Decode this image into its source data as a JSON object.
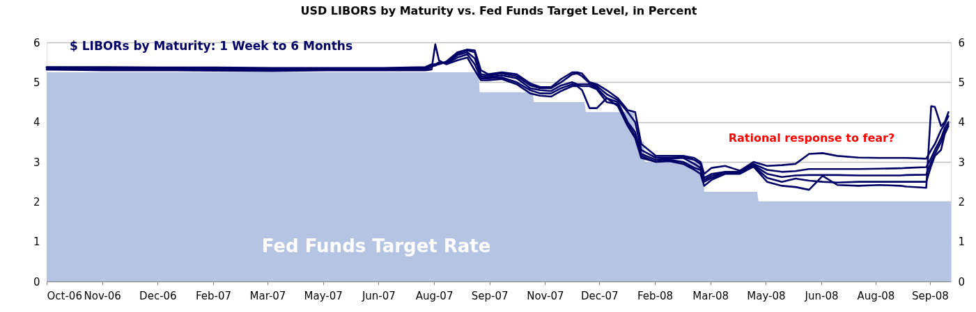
{
  "chart_data": {
    "type": "line",
    "title": "USD LIBORS by Maturity vs. Fed Funds Target Level, in Percent",
    "annotations": [
      "$ LIBORs by Maturity: 1 Week to 6 Months",
      "Rational response to fear?"
    ],
    "x": [
      "2006-10-02",
      "2006-11-18",
      "2007-01-02",
      "2007-02-16",
      "2007-04-03",
      "2007-05-18",
      "2007-07-02",
      "2007-08-05",
      "2007-08-10",
      "2007-08-13",
      "2007-08-16",
      "2007-08-22",
      "2007-08-31",
      "2007-09-08",
      "2007-09-14",
      "2007-09-19",
      "2007-09-25",
      "2007-10-06",
      "2007-10-18",
      "2007-10-29",
      "2007-11-06",
      "2007-11-15",
      "2007-11-23",
      "2007-12-02",
      "2007-12-06",
      "2007-12-10",
      "2007-12-16",
      "2007-12-22",
      "2007-12-30",
      "2008-01-08",
      "2008-01-16",
      "2008-01-22",
      "2008-01-27",
      "2008-02-08",
      "2008-02-19",
      "2008-03-01",
      "2008-03-10",
      "2008-03-15",
      "2008-03-18",
      "2008-03-24",
      "2008-04-04",
      "2008-04-16",
      "2008-04-27",
      "2008-05-08",
      "2008-05-20",
      "2008-05-31",
      "2008-06-11",
      "2008-06-22",
      "2008-07-04",
      "2008-07-21",
      "2008-08-07",
      "2008-08-24",
      "2008-08-29",
      "2008-09-14",
      "2008-09-18",
      "2008-09-21",
      "2008-09-26",
      "2008-09-29",
      "2008-10-02"
    ],
    "series": [
      {
        "name": "Fed Funds Target Rate",
        "type": "area",
        "axis": "y2",
        "color": "#b4c4e2",
        "x": [
          "2006-10-02",
          "2007-09-17",
          "2007-09-18",
          "2007-10-31",
          "2007-11-01",
          "2007-12-12",
          "2007-12-13",
          "2008-01-21",
          "2008-01-22",
          "2008-01-29",
          "2008-01-30",
          "2008-03-17",
          "2008-03-18",
          "2008-04-30",
          "2008-05-01",
          "2008-10-04"
        ],
        "values": [
          5.25,
          5.25,
          4.75,
          4.75,
          4.5,
          4.5,
          4.25,
          4.25,
          3.5,
          3.5,
          3.0,
          3.0,
          2.25,
          2.25,
          2.0,
          2.0
        ]
      },
      {
        "color": "#000066",
        "values": [
          5.32,
          5.3,
          5.3,
          5.29,
          5.28,
          5.3,
          5.3,
          5.3,
          5.32,
          5.95,
          5.55,
          5.45,
          5.55,
          5.62,
          5.3,
          5.05,
          5.05,
          5.08,
          4.95,
          4.72,
          4.66,
          4.64,
          4.78,
          4.9,
          4.9,
          4.8,
          4.35,
          4.35,
          4.6,
          4.4,
          3.9,
          3.6,
          3.1,
          3.0,
          3.02,
          2.95,
          2.8,
          2.7,
          2.4,
          2.55,
          2.7,
          2.7,
          2.88,
          2.5,
          2.4,
          2.37,
          2.3,
          2.65,
          2.42,
          2.4,
          2.42,
          2.4,
          2.38,
          2.35,
          4.4,
          4.38,
          3.9,
          4.0,
          4.25
        ]
      },
      {
        "color": "#000066",
        "values": [
          5.32,
          5.32,
          5.32,
          5.31,
          5.31,
          5.32,
          5.31,
          5.32,
          5.38,
          5.45,
          5.5,
          5.47,
          5.62,
          5.7,
          5.45,
          5.1,
          5.1,
          5.12,
          5.0,
          4.8,
          4.72,
          4.72,
          4.85,
          4.95,
          4.92,
          4.9,
          4.9,
          4.82,
          4.5,
          4.45,
          3.95,
          3.65,
          3.15,
          3.0,
          3.05,
          3.0,
          2.85,
          2.8,
          2.5,
          2.6,
          2.72,
          2.72,
          2.9,
          2.6,
          2.5,
          2.58,
          2.53,
          2.5,
          2.48,
          2.5,
          2.5,
          2.5,
          2.5,
          2.5,
          2.9,
          3.15,
          3.3,
          3.7,
          3.9
        ]
      },
      {
        "color": "#000066",
        "values": [
          5.36,
          5.35,
          5.35,
          5.33,
          5.32,
          5.33,
          5.33,
          5.34,
          5.4,
          5.42,
          5.48,
          5.48,
          5.68,
          5.75,
          5.6,
          5.15,
          5.13,
          5.17,
          5.1,
          4.85,
          4.8,
          4.78,
          4.92,
          5.0,
          4.95,
          4.95,
          4.95,
          4.85,
          4.6,
          4.5,
          4.0,
          3.75,
          3.2,
          3.05,
          3.08,
          3.1,
          2.95,
          2.85,
          2.55,
          2.65,
          2.73,
          2.73,
          2.92,
          2.7,
          2.62,
          2.66,
          2.67,
          2.67,
          2.67,
          2.66,
          2.66,
          2.66,
          2.67,
          2.68,
          3.0,
          3.2,
          3.5,
          3.75,
          3.95
        ]
      },
      {
        "color": "#000066",
        "values": [
          5.37,
          5.36,
          5.36,
          5.35,
          5.35,
          5.35,
          5.35,
          5.36,
          5.42,
          5.42,
          5.46,
          5.5,
          5.72,
          5.8,
          5.75,
          5.2,
          5.17,
          5.22,
          5.15,
          4.92,
          4.85,
          4.85,
          5.0,
          5.2,
          5.22,
          5.15,
          4.98,
          4.9,
          4.7,
          4.55,
          4.25,
          4.0,
          3.3,
          3.1,
          3.1,
          3.12,
          3.05,
          2.95,
          2.6,
          2.7,
          2.75,
          2.75,
          2.95,
          2.8,
          2.75,
          2.77,
          2.82,
          2.82,
          2.82,
          2.82,
          2.83,
          2.84,
          2.85,
          2.87,
          3.1,
          3.3,
          3.6,
          3.85,
          4.0
        ]
      },
      {
        "color": "#000066",
        "values": [
          5.38,
          5.38,
          5.37,
          5.37,
          5.36,
          5.36,
          5.36,
          5.38,
          5.45,
          5.45,
          5.45,
          5.52,
          5.75,
          5.82,
          5.8,
          5.3,
          5.2,
          5.25,
          5.2,
          4.97,
          4.88,
          4.88,
          5.08,
          5.25,
          5.25,
          5.22,
          5.0,
          4.95,
          4.8,
          4.6,
          4.3,
          4.25,
          3.45,
          3.15,
          3.15,
          3.15,
          3.1,
          3.0,
          2.7,
          2.85,
          2.9,
          2.78,
          3.0,
          2.9,
          2.92,
          2.95,
          3.2,
          3.22,
          3.15,
          3.11,
          3.1,
          3.1,
          3.1,
          3.08,
          3.3,
          3.45,
          3.8,
          3.95,
          4.15
        ]
      }
    ],
    "xlim": [
      "2006-10-02",
      "2008-10-04"
    ],
    "xticks": [
      {
        "value": "2006-10-02",
        "label": "Oct-06"
      },
      {
        "value": "2006-11-16",
        "label": "Nov-06"
      },
      {
        "value": "2006-12-31",
        "label": "Dec-06"
      },
      {
        "value": "2007-02-14",
        "label": "Feb-07"
      },
      {
        "value": "2007-03-30",
        "label": "Mar-07"
      },
      {
        "value": "2007-05-14",
        "label": "May-07"
      },
      {
        "value": "2007-06-28",
        "label": "Jun-07"
      },
      {
        "value": "2007-08-12",
        "label": "Aug-07"
      },
      {
        "value": "2007-09-26",
        "label": "Sep-07"
      },
      {
        "value": "2007-11-10",
        "label": "Nov-07"
      },
      {
        "value": "2007-12-24",
        "label": "Dec-07"
      },
      {
        "value": "2008-02-07",
        "label": "Feb-08"
      },
      {
        "value": "2008-03-23",
        "label": "Mar-08"
      },
      {
        "value": "2008-05-07",
        "label": "May-08"
      },
      {
        "value": "2008-06-21",
        "label": "Jun-08"
      },
      {
        "value": "2008-08-04",
        "label": "Aug-08"
      },
      {
        "value": "2008-09-17",
        "label": "Sep-08"
      }
    ],
    "ylim": [
      0,
      6
    ],
    "yticks": [
      0,
      1,
      2,
      3,
      4,
      5,
      6
    ],
    "y2lim": [
      0,
      6
    ],
    "y2ticks": [
      0,
      1,
      2,
      3,
      4,
      5,
      6
    ],
    "grid": "y",
    "legend": false,
    "marker": "none",
    "line_style": "solid"
  }
}
